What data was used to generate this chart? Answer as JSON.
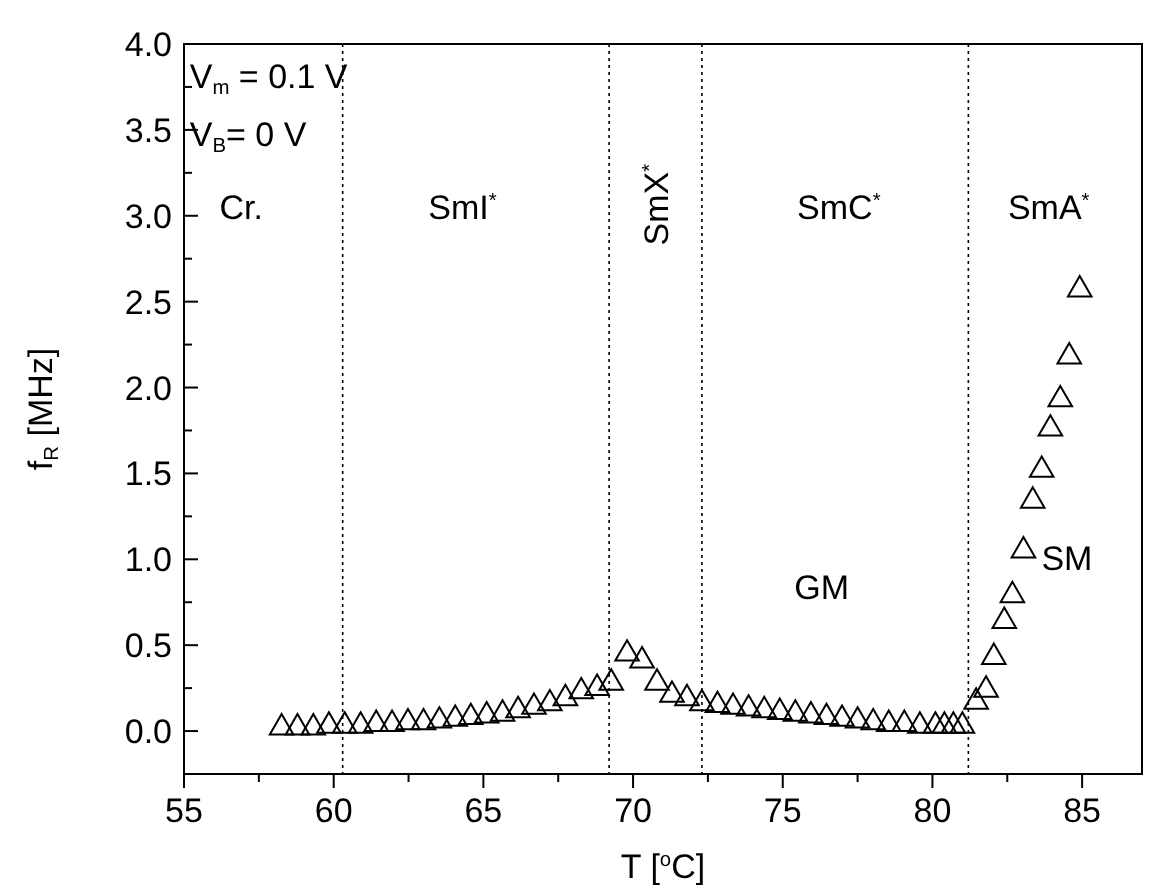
{
  "chart_data": {
    "type": "scatter",
    "xlabel": "T [$^{o}$C]",
    "ylabel": "f$_{R}$ [MHz]",
    "marker": "triangle",
    "grid": false,
    "xlim": [
      55,
      87
    ],
    "ylim": [
      -0.25,
      4
    ],
    "xticks": [
      55,
      {
        "value": 57.5,
        "label": null
      },
      60,
      {
        "value": 62.5,
        "label": null
      },
      65,
      {
        "value": 67.5,
        "label": null
      },
      70,
      {
        "value": 72.5,
        "label": null
      },
      75,
      {
        "value": 77.5,
        "label": null
      },
      80,
      {
        "value": 82.5,
        "label": null
      },
      85
    ],
    "yticks": [
      "0.0",
      {
        "value": 0.25,
        "label": null
      },
      {
        "value": 0.5,
        "label": "0.5"
      },
      {
        "value": 0.75,
        "label": null
      },
      {
        "value": 1,
        "label": "1.0"
      },
      {
        "value": 1.25,
        "label": null
      },
      {
        "value": 1.5,
        "label": "1.5"
      },
      {
        "value": 1.75,
        "label": null
      },
      {
        "value": 2,
        "label": "2.0"
      },
      {
        "value": 2.25,
        "label": null
      },
      {
        "value": 2.5,
        "label": "2.5"
      },
      {
        "value": 2.75,
        "label": null
      },
      {
        "value": 3,
        "label": "3.0"
      },
      {
        "value": 3.25,
        "label": null
      },
      {
        "value": 3.5,
        "label": "3.5"
      },
      {
        "value": 3.75,
        "label": null
      },
      {
        "value": 4,
        "label": "4.0"
      }
    ],
    "series": [
      {
        "color": "#000000",
        "x": [
          58.26,
          58.79,
          59.32,
          59.84,
          60.37,
          60.9,
          61.42,
          61.95,
          62.48,
          63.0,
          63.53,
          64.06,
          64.58,
          65.11,
          65.64,
          66.16,
          66.69,
          67.22,
          67.74,
          68.27,
          68.8,
          69.27,
          69.8,
          70.3,
          70.8,
          71.3,
          71.8,
          72.3,
          72.82,
          73.34,
          73.86,
          74.38,
          74.9,
          75.42,
          75.94,
          76.46,
          76.98,
          77.5,
          78.02,
          78.54,
          79.06,
          79.58,
          80.1,
          80.4,
          80.7,
          81.0,
          81.46,
          81.79,
          82.05,
          82.4,
          82.67,
          83.04,
          83.35,
          83.65,
          83.94,
          84.27,
          84.57,
          84.92
        ],
        "values": [
          0.02,
          0.02,
          0.02,
          0.03,
          0.03,
          0.03,
          0.04,
          0.04,
          0.05,
          0.05,
          0.06,
          0.07,
          0.08,
          0.09,
          0.1,
          0.12,
          0.14,
          0.16,
          0.19,
          0.23,
          0.25,
          0.28,
          0.45,
          0.41,
          0.28,
          0.21,
          0.19,
          0.16,
          0.15,
          0.14,
          0.13,
          0.12,
          0.11,
          0.1,
          0.09,
          0.08,
          0.07,
          0.06,
          0.05,
          0.04,
          0.04,
          0.03,
          0.03,
          0.03,
          0.03,
          0.03,
          0.17,
          0.24,
          0.43,
          0.64,
          0.79,
          1.05,
          1.34,
          1.52,
          1.76,
          1.93,
          2.18,
          2.57
        ]
      }
    ],
    "ref_lines": [
      {
        "axis": "x",
        "value": 60.3,
        "line_style": "dotted"
      },
      {
        "axis": "x",
        "value": 69.2,
        "line_style": "dotted"
      },
      {
        "axis": "x",
        "value": 72.3,
        "line_style": "dotted"
      },
      {
        "axis": "x",
        "value": 81.2,
        "line_style": "dotted"
      }
    ],
    "annotations": [
      "V$_{m}$ = 0.1 V",
      "V$_{B}$= 0 V",
      "Cr.",
      "SmI$^{*}$",
      "SmX$^{*}$",
      "SmC$^{*}$",
      "SmA$^{*}$",
      "GM",
      "SM"
    ]
  }
}
